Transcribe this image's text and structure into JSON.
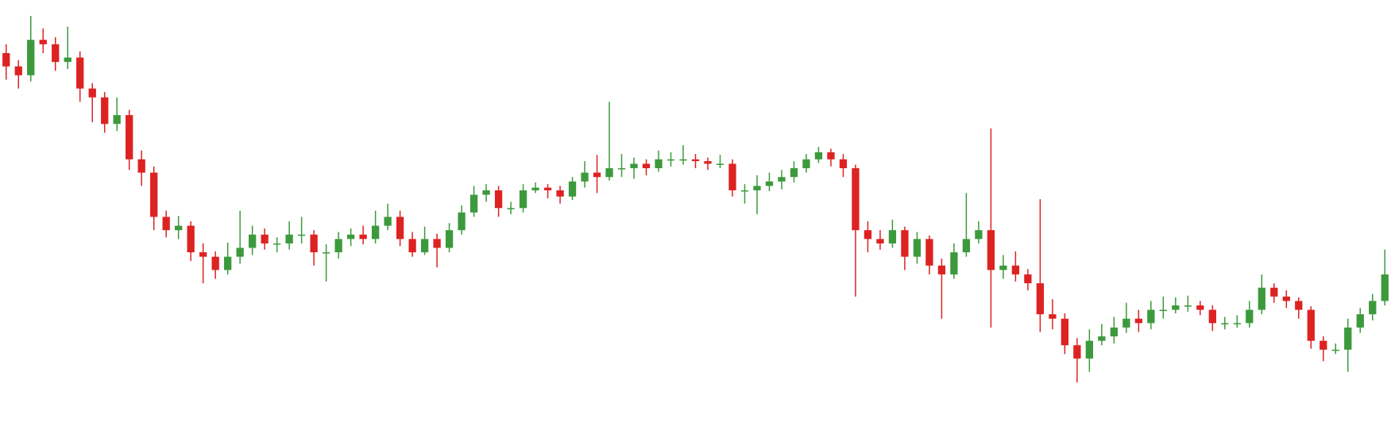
{
  "chart_data": {
    "type": "candlestick",
    "open": [
      440,
      425,
      415,
      455,
      450,
      430,
      435,
      400,
      390,
      360,
      370,
      320,
      305,
      255,
      240,
      245,
      215,
      210,
      195,
      210,
      220,
      235,
      225,
      225,
      235,
      235,
      215,
      215,
      230,
      235,
      230,
      245,
      255,
      230,
      215,
      230,
      220,
      240,
      260,
      280,
      285,
      265,
      265,
      285,
      288,
      285,
      278,
      295,
      305,
      300,
      310,
      310,
      315,
      310,
      320,
      320,
      320,
      318,
      315,
      315,
      285,
      285,
      290,
      295,
      300,
      310,
      320,
      328,
      320,
      310,
      240,
      230,
      225,
      240,
      210,
      230,
      200,
      190,
      215,
      230,
      240,
      195,
      200,
      190,
      180,
      145,
      140,
      110,
      95,
      115,
      120,
      130,
      140,
      135,
      150,
      150,
      155,
      155,
      150,
      135,
      135,
      135,
      150,
      175,
      165,
      160,
      150,
      115,
      105,
      105,
      130,
      145,
      160
    ],
    "high": [
      450,
      432,
      482,
      468,
      458,
      470,
      442,
      406,
      396,
      390,
      376,
      330,
      312,
      262,
      256,
      250,
      225,
      216,
      226,
      262,
      245,
      242,
      232,
      250,
      255,
      240,
      224,
      238,
      242,
      245,
      262,
      270,
      262,
      238,
      244,
      236,
      248,
      268,
      290,
      292,
      290,
      272,
      292,
      294,
      292,
      290,
      300,
      318,
      325,
      385,
      326,
      322,
      320,
      330,
      328,
      336,
      326,
      322,
      325,
      320,
      292,
      302,
      305,
      308,
      318,
      326,
      334,
      332,
      326,
      314,
      250,
      240,
      252,
      244,
      238,
      234,
      208,
      225,
      282,
      250,
      355,
      212,
      216,
      196,
      275,
      162,
      146,
      118,
      128,
      134,
      142,
      158,
      150,
      160,
      165,
      164,
      166,
      160,
      155,
      142,
      144,
      160,
      190,
      180,
      172,
      164,
      154,
      120,
      112,
      140,
      152,
      168,
      218
    ],
    "low": [
      410,
      400,
      408,
      440,
      420,
      422,
      385,
      362,
      350,
      352,
      308,
      290,
      240,
      232,
      230,
      205,
      180,
      185,
      190,
      202,
      212,
      218,
      215,
      218,
      225,
      200,
      182,
      208,
      222,
      224,
      225,
      240,
      222,
      210,
      212,
      198,
      215,
      235,
      255,
      272,
      255,
      258,
      260,
      282,
      276,
      270,
      274,
      288,
      282,
      296,
      300,
      298,
      302,
      306,
      312,
      314,
      310,
      308,
      310,
      278,
      270,
      258,
      284,
      286,
      294,
      305,
      316,
      312,
      300,
      165,
      215,
      218,
      220,
      195,
      202,
      190,
      140,
      185,
      210,
      225,
      130,
      185,
      182,
      172,
      125,
      128,
      100,
      68,
      80,
      110,
      112,
      124,
      125,
      128,
      140,
      146,
      148,
      144,
      126,
      128,
      130,
      130,
      145,
      158,
      152,
      140,
      106,
      92,
      100,
      80,
      124,
      138,
      155
    ],
    "close": [
      425,
      415,
      455,
      450,
      430,
      435,
      400,
      390,
      360,
      370,
      320,
      305,
      255,
      240,
      245,
      215,
      210,
      195,
      210,
      220,
      235,
      225,
      225,
      235,
      235,
      215,
      215,
      230,
      235,
      230,
      245,
      255,
      230,
      215,
      230,
      220,
      240,
      260,
      280,
      285,
      265,
      265,
      285,
      288,
      285,
      278,
      295,
      305,
      300,
      310,
      310,
      315,
      310,
      320,
      320,
      320,
      318,
      315,
      315,
      285,
      285,
      290,
      295,
      300,
      310,
      320,
      328,
      320,
      310,
      240,
      230,
      225,
      240,
      210,
      230,
      200,
      190,
      215,
      230,
      240,
      195,
      200,
      190,
      180,
      145,
      140,
      110,
      95,
      115,
      120,
      130,
      140,
      135,
      150,
      150,
      155,
      155,
      150,
      135,
      135,
      135,
      150,
      175,
      165,
      160,
      150,
      115,
      105,
      105,
      130,
      145,
      160,
      190
    ],
    "ylim": [
      0,
      500
    ],
    "up_color": "#3c9a3c",
    "down_color": "#dd2222"
  }
}
